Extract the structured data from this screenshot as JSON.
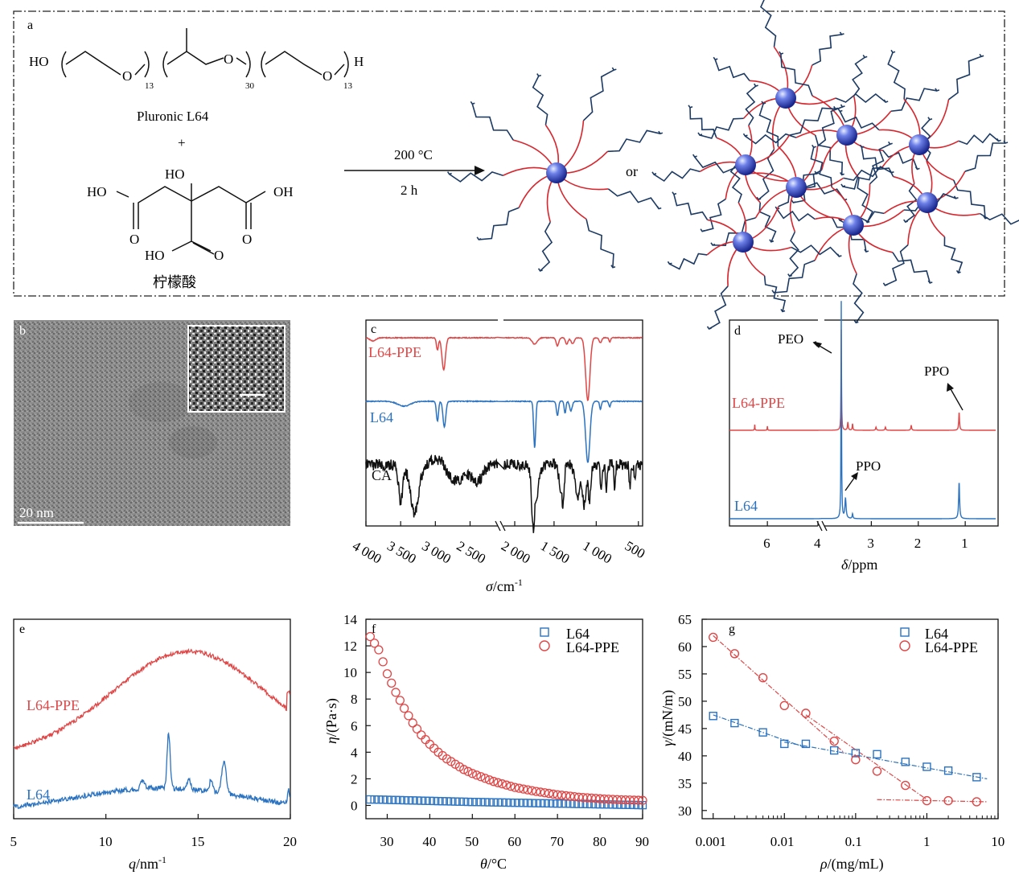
{
  "panel_a": {
    "label": "a",
    "chem_ho": "HO",
    "chem_o": "O",
    "chem_h": "H",
    "sub_13": "13",
    "sub_30": "30",
    "pluronic_name": "Pluronic L64",
    "plus": "+",
    "ca_ho_top": "HO",
    "ca_ho_left": "HO",
    "ca_oh_right": "OH",
    "ca_ho_bottom": "HO",
    "ca_o_left": "O",
    "ca_o_right": "O",
    "ca_o_bottom": "O",
    "citric_name": "柠檬酸",
    "condition_temp": "200 °C",
    "condition_time": "2 h",
    "or_text": "or",
    "colors": {
      "red_chain": "#d7262e",
      "blue_chain": "#1c3a63",
      "sphere": "#3a4fc4"
    }
  },
  "panel_b": {
    "label": "b",
    "scale": "20 nm"
  },
  "panel_c": {
    "label": "c",
    "xlabel_sym": "σ",
    "xlabel_unit": "/cm",
    "xlabel_exp": "-1",
    "ticks": [
      "4 000",
      "3 500",
      "3 000",
      "2 500",
      "2 000",
      "1 500",
      "1 000",
      "500"
    ],
    "series_labels": [
      "L64-PPE",
      "L64",
      "CA"
    ],
    "colors": {
      "L64-PPE": "#e04646",
      "L64": "#2b73c0",
      "CA": "#111111"
    }
  },
  "panel_d": {
    "label": "d",
    "xlabel_sym": "δ",
    "xlabel_unit": "/ppm",
    "ticks": [
      "6",
      "4",
      "3",
      "2",
      "1"
    ],
    "series_labels": [
      "L64-PPE",
      "L64"
    ],
    "ann_peo": "PEO",
    "ann_ppo_top": "PPO",
    "ann_ppo_bottom": "PPO"
  },
  "panel_e": {
    "label": "e",
    "xlabel_sym": "q",
    "xlabel_unit": "/nm",
    "xlabel_exp": "-1",
    "ticks": [
      "5",
      "10",
      "15",
      "20"
    ],
    "series_labels": [
      "L64-PPE",
      "L64"
    ]
  },
  "panel_f": {
    "label": "f",
    "ylabel_sym": "η",
    "ylabel_unit": "/(Pa·s)",
    "xlabel_sym": "θ",
    "xlabel_unit": "/°C",
    "xticks": [
      "30",
      "40",
      "50",
      "60",
      "70",
      "80",
      "90"
    ],
    "yticks": [
      "0",
      "2",
      "4",
      "6",
      "8",
      "10",
      "12",
      "14"
    ],
    "legend": [
      "L64",
      "L64-PPE"
    ]
  },
  "panel_g": {
    "label": "g",
    "ylabel_sym": "γ",
    "ylabel_unit": "/(mN/m)",
    "xlabel_sym": "ρ",
    "xlabel_unit": "/(mg/mL)",
    "xticks": [
      "0.001",
      "0.01",
      "0.1",
      "1",
      "10"
    ],
    "yticks": [
      "30",
      "35",
      "40",
      "45",
      "50",
      "55",
      "60",
      "65"
    ],
    "legend": [
      "L64",
      "L64-PPE"
    ]
  },
  "chart_data": [
    {
      "type": "line",
      "panel": "f",
      "xlim": [
        25,
        90
      ],
      "ylim": [
        -1,
        14
      ],
      "series": [
        {
          "name": "L64",
          "color": "#2b73c0",
          "marker": "square",
          "x": [
            26,
            30,
            35,
            40,
            45,
            50,
            55,
            60,
            65,
            70,
            75,
            80,
            85,
            90
          ],
          "y": [
            0.45,
            0.42,
            0.38,
            0.34,
            0.3,
            0.26,
            0.23,
            0.2,
            0.17,
            0.14,
            0.11,
            0.08,
            0.05,
            0.02
          ]
        },
        {
          "name": "L64-PPE",
          "color": "#e04646",
          "marker": "circle",
          "x": [
            26,
            28,
            30,
            32,
            34,
            36,
            38,
            40,
            42,
            44,
            46,
            48,
            50,
            55,
            60,
            65,
            70,
            75,
            80,
            85,
            90
          ],
          "y": [
            12.7,
            11.7,
            9.9,
            8.5,
            7.3,
            6.2,
            5.3,
            4.6,
            4.0,
            3.5,
            3.1,
            2.7,
            2.4,
            1.8,
            1.35,
            1.05,
            0.8,
            0.62,
            0.5,
            0.42,
            0.38
          ]
        }
      ]
    },
    {
      "type": "scatter",
      "panel": "g",
      "xscale": "log",
      "xlim": [
        0.0007,
        10
      ],
      "ylim": [
        28.5,
        65
      ],
      "series": [
        {
          "name": "L64",
          "color": "#2b73c0",
          "marker": "square",
          "x": [
            0.001,
            0.002,
            0.005,
            0.01,
            0.02,
            0.05,
            0.1,
            0.2,
            0.5,
            1,
            2,
            5
          ],
          "y": [
            47.3,
            46.0,
            44.3,
            42.2,
            42.2,
            41.0,
            40.5,
            40.3,
            38.9,
            38.0,
            37.3,
            36.1
          ]
        },
        {
          "name": "L64-PPE",
          "color": "#e04646",
          "marker": "circle",
          "x": [
            0.001,
            0.002,
            0.005,
            0.01,
            0.02,
            0.05,
            0.1,
            0.2,
            0.5,
            1,
            2,
            5
          ],
          "y": [
            61.7,
            58.7,
            54.3,
            49.2,
            47.8,
            42.7,
            39.3,
            37.2,
            34.6,
            31.8,
            31.8,
            31.6
          ]
        }
      ]
    }
  ]
}
